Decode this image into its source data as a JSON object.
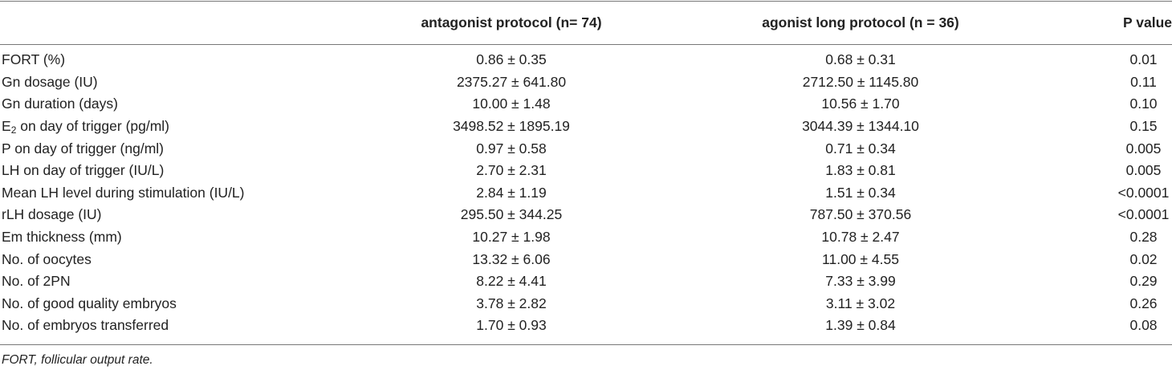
{
  "table": {
    "header": [
      "antagonist protocol (n= 74)",
      "agonist long protocol (n = 36)",
      "P value"
    ],
    "rows": [
      [
        "FORT (%)",
        "0.86 ± 0.35",
        "0.68 ± 0.31",
        "0.01"
      ],
      [
        "Gn dosage (IU)",
        "2375.27 ± 641.80",
        "2712.50 ± 1145.80",
        "0.11"
      ],
      [
        "Gn duration (days)",
        "10.00 ± 1.48",
        "10.56 ± 1.70",
        "0.10"
      ],
      [
        [
          "E",
          "2",
          " on day of trigger (pg/ml)"
        ],
        "3498.52 ± 1895.19",
        "3044.39 ± 1344.10",
        "0.15"
      ],
      [
        "P on day of trigger (ng/ml)",
        "0.97 ± 0.58",
        "0.71 ± 0.34",
        "0.005"
      ],
      [
        "LH on day of trigger (IU/L)",
        "2.70 ± 2.31",
        "1.83 ± 0.81",
        "0.005"
      ],
      [
        "Mean LH level during stimulation (IU/L)",
        "2.84 ± 1.19",
        "1.51 ± 0.34",
        "<0.0001"
      ],
      [
        "rLH dosage (IU)",
        "295.50 ± 344.25",
        "787.50 ± 370.56",
        "<0.0001"
      ],
      [
        "Em thickness (mm)",
        "10.27 ± 1.98",
        "10.78 ± 2.47",
        "0.28"
      ],
      [
        "No. of oocytes",
        "13.32 ± 6.06",
        "11.00 ± 4.55",
        "0.02"
      ],
      [
        "No. of 2PN",
        "8.22 ± 4.41",
        "7.33 ± 3.99",
        "0.29"
      ],
      [
        "No. of good quality embryos",
        "3.78 ± 2.82",
        "3.11 ± 3.02",
        "0.26"
      ],
      [
        "No. of embryos transferred",
        "1.70 ± 0.93",
        "1.39 ± 0.84",
        "0.08"
      ]
    ],
    "footnote": "FORT, follicular output rate."
  }
}
